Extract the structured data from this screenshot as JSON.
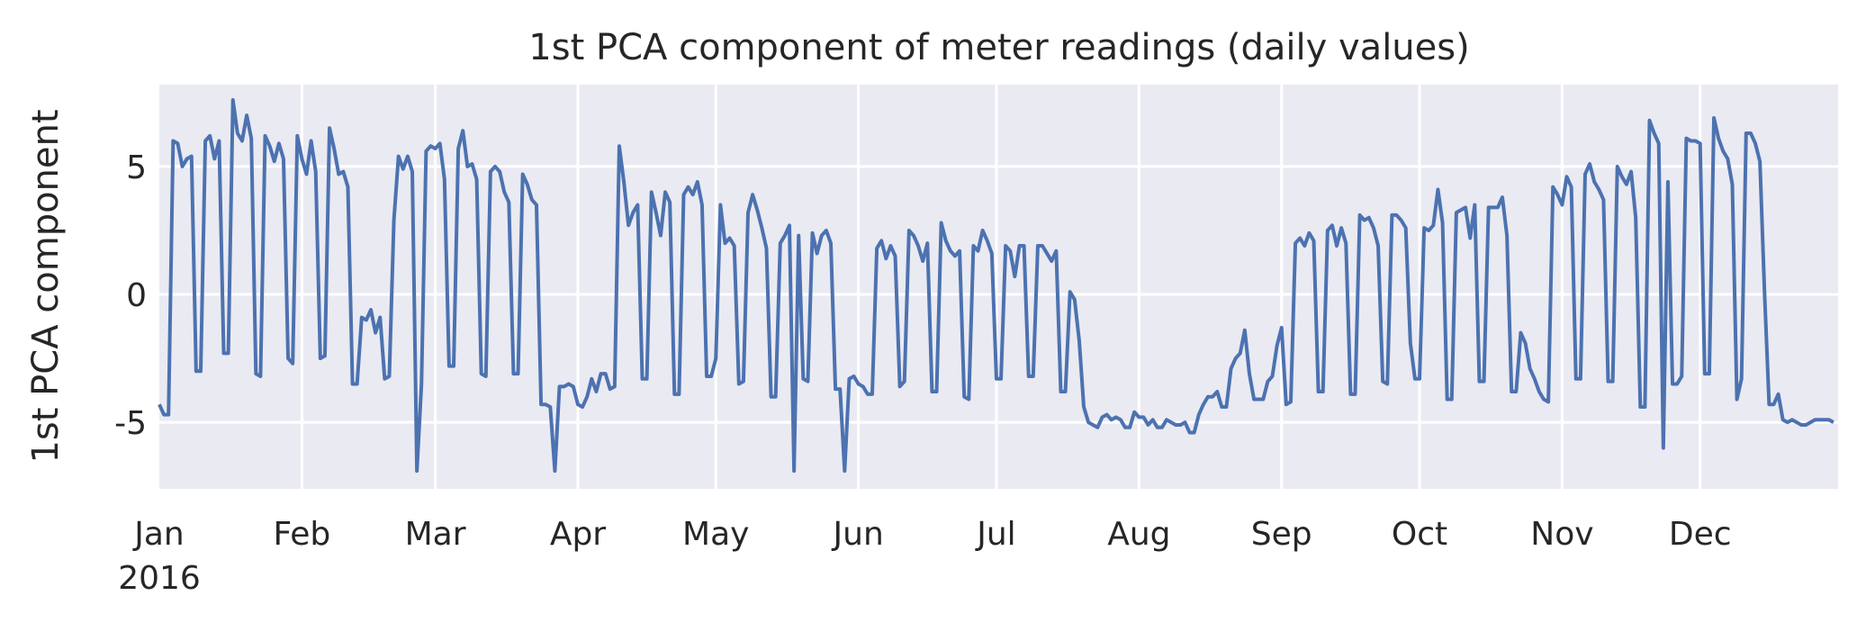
{
  "chart_data": {
    "type": "line",
    "title": "1st PCA component of meter readings (daily values)",
    "xlabel": "",
    "ylabel": "1st PCA component",
    "x_start": "2016-01-01",
    "x_end": "2016-12-31",
    "ylim": [
      -7.6,
      8.2
    ],
    "y_ticks": [
      {
        "value": 5,
        "label": "5"
      },
      {
        "value": 0,
        "label": "0"
      },
      {
        "value": -5,
        "label": "-5"
      }
    ],
    "x_ticks": [
      {
        "date": "2016-01-01",
        "label": "Jan",
        "sublabel": "2016"
      },
      {
        "date": "2016-02-01",
        "label": "Feb"
      },
      {
        "date": "2016-03-01",
        "label": "Mar"
      },
      {
        "date": "2016-04-01",
        "label": "Apr"
      },
      {
        "date": "2016-05-01",
        "label": "May"
      },
      {
        "date": "2016-06-01",
        "label": "Jun"
      },
      {
        "date": "2016-07-01",
        "label": "Jul"
      },
      {
        "date": "2016-08-01",
        "label": "Aug"
      },
      {
        "date": "2016-09-01",
        "label": "Sep"
      },
      {
        "date": "2016-10-01",
        "label": "Oct"
      },
      {
        "date": "2016-11-01",
        "label": "Nov"
      },
      {
        "date": "2016-12-01",
        "label": "Dec"
      }
    ],
    "grid": true,
    "line_color": "#4C72B0",
    "background_color": "#EAEAF2",
    "grid_color": "#FFFFFF",
    "series": [
      {
        "values": [
          -4.3,
          -4.7,
          -4.7,
          6.0,
          5.9,
          5.0,
          5.3,
          5.4,
          -3.0,
          -3.0,
          6.0,
          6.2,
          5.3,
          6.0,
          -2.3,
          -2.3,
          7.6,
          6.3,
          6.0,
          7.0,
          6.1,
          -3.1,
          -3.2,
          6.2,
          5.8,
          5.2,
          5.9,
          5.3,
          -2.5,
          -2.7,
          6.2,
          5.3,
          4.7,
          6.0,
          4.8,
          -2.5,
          -2.4,
          6.5,
          5.7,
          4.7,
          4.8,
          4.2,
          -3.5,
          -3.5,
          -0.9,
          -1.0,
          -0.6,
          -1.5,
          -0.9,
          -3.3,
          -3.2,
          2.9,
          5.4,
          4.9,
          5.4,
          4.8,
          -6.9,
          -3.5,
          5.6,
          5.8,
          5.7,
          5.9,
          4.5,
          -2.8,
          -2.8,
          5.7,
          6.4,
          5.0,
          5.1,
          4.5,
          -3.1,
          -3.2,
          4.8,
          5.0,
          4.8,
          4.0,
          3.6,
          -3.1,
          -3.1,
          4.7,
          4.3,
          3.7,
          3.5,
          -4.3,
          -4.3,
          -4.4,
          -6.9,
          -3.6,
          -3.6,
          -3.5,
          -3.6,
          -4.3,
          -4.4,
          -4.0,
          -3.3,
          -3.8,
          -3.1,
          -3.1,
          -3.7,
          -3.6,
          5.8,
          4.4,
          2.7,
          3.2,
          3.5,
          -3.3,
          -3.3,
          4.0,
          3.2,
          2.3,
          4.0,
          3.6,
          -3.9,
          -3.9,
          3.9,
          4.2,
          3.9,
          4.4,
          3.5,
          -3.2,
          -3.2,
          -2.5,
          3.5,
          2.0,
          2.2,
          1.9,
          -3.5,
          -3.4,
          3.2,
          3.9,
          3.3,
          2.6,
          1.8,
          -4.0,
          -4.0,
          2.0,
          2.3,
          2.7,
          -6.9,
          2.3,
          -3.3,
          -3.4,
          2.4,
          1.6,
          2.3,
          2.5,
          2.0,
          -3.7,
          -3.7,
          -6.9,
          -3.3,
          -3.2,
          -3.5,
          -3.6,
          -3.9,
          -3.9,
          1.8,
          2.1,
          1.4,
          1.9,
          1.5,
          -3.6,
          -3.4,
          2.5,
          2.3,
          1.9,
          1.3,
          2.0,
          -3.8,
          -3.8,
          2.8,
          2.1,
          1.7,
          1.5,
          1.7,
          -4.0,
          -4.1,
          1.9,
          1.7,
          2.5,
          2.1,
          1.6,
          -3.3,
          -3.3,
          1.9,
          1.7,
          0.7,
          1.9,
          1.9,
          -3.2,
          -3.2,
          1.9,
          1.9,
          1.6,
          1.3,
          1.7,
          -3.8,
          -3.8,
          0.1,
          -0.2,
          -1.8,
          -4.4,
          -5.0,
          -5.1,
          -5.2,
          -4.8,
          -4.7,
          -4.9,
          -4.8,
          -4.9,
          -5.2,
          -5.2,
          -4.6,
          -4.8,
          -4.8,
          -5.1,
          -4.9,
          -5.2,
          -5.2,
          -4.9,
          -5.0,
          -5.1,
          -5.1,
          -5.0,
          -5.4,
          -5.4,
          -4.7,
          -4.3,
          -4.0,
          -4.0,
          -3.8,
          -4.4,
          -4.4,
          -2.9,
          -2.5,
          -2.3,
          -1.4,
          -3.1,
          -4.1,
          -4.1,
          -4.1,
          -3.4,
          -3.2,
          -2.0,
          -1.3,
          -4.3,
          -4.2,
          2.0,
          2.2,
          1.9,
          2.4,
          2.1,
          -3.8,
          -3.8,
          2.5,
          2.7,
          1.9,
          2.6,
          2.0,
          -3.9,
          -3.9,
          3.1,
          2.9,
          3.0,
          2.6,
          1.9,
          -3.4,
          -3.5,
          3.1,
          3.1,
          2.9,
          2.6,
          -1.9,
          -3.3,
          -3.3,
          2.6,
          2.5,
          2.7,
          4.1,
          2.8,
          -4.1,
          -4.1,
          3.2,
          3.3,
          3.4,
          2.2,
          3.5,
          -3.4,
          -3.4,
          3.4,
          3.4,
          3.4,
          3.8,
          2.3,
          -3.8,
          -3.8,
          -1.5,
          -1.9,
          -2.9,
          -3.3,
          -3.8,
          -4.1,
          -4.2,
          4.2,
          3.9,
          3.5,
          4.6,
          4.2,
          -3.3,
          -3.3,
          4.7,
          5.1,
          4.4,
          4.1,
          3.7,
          -3.4,
          -3.4,
          5.0,
          4.6,
          4.3,
          4.8,
          3.0,
          -4.4,
          -4.4,
          6.8,
          6.3,
          5.9,
          -6.0,
          4.4,
          -3.5,
          -3.5,
          -3.2,
          6.1,
          6.0,
          6.0,
          5.9,
          -3.1,
          -3.1,
          6.9,
          6.1,
          5.6,
          5.3,
          4.3,
          -4.1,
          -3.3,
          6.3,
          6.3,
          5.9,
          5.2,
          0.1,
          -4.3,
          -4.3,
          -3.9,
          -4.9,
          -5.0,
          -4.9,
          -5.0,
          -5.1,
          -5.1,
          -5.0,
          -4.9,
          -4.9,
          -4.9,
          -4.9,
          -5.0
        ]
      }
    ]
  }
}
